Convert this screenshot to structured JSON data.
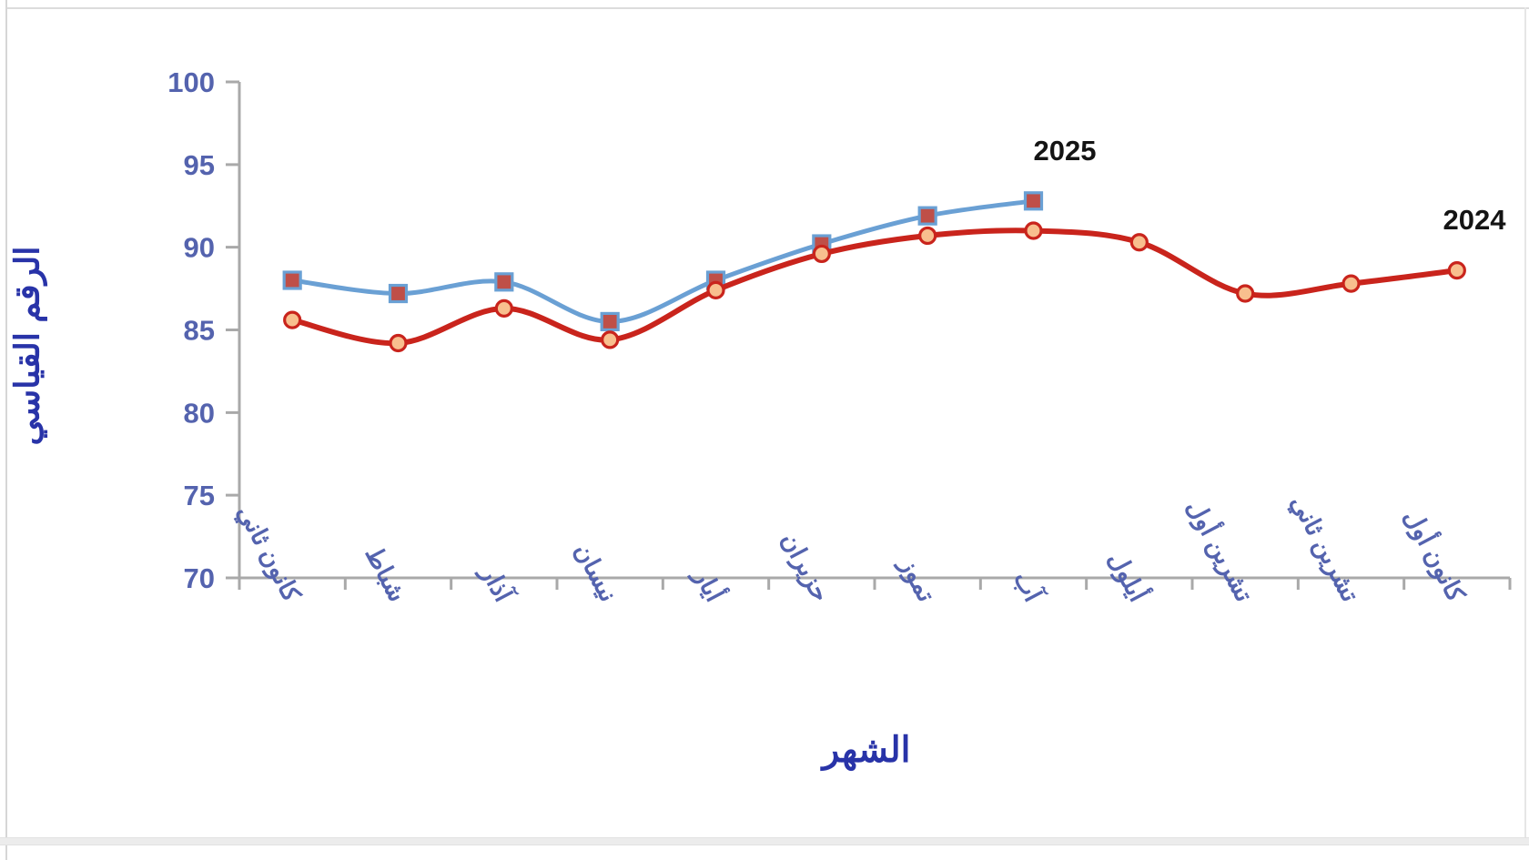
{
  "chart_data": {
    "type": "line",
    "title": "",
    "xlabel": "الشهر",
    "ylabel": "الرقم القياسي",
    "ylim": [
      70,
      100
    ],
    "ytick_step": 5,
    "grid": false,
    "legend_position": "end-of-line-labels",
    "categories": [
      "كانون ثاني",
      "شباط",
      "آذار",
      "نيسان",
      "أيار",
      "حزيران",
      "تموز",
      "آب",
      "أيلول",
      "تشرين أول",
      "تشرين ثاني",
      "كانون أول"
    ],
    "series": [
      {
        "name": "2025",
        "color": "#6aa0d4",
        "marker": "square",
        "marker_fill": "#bf4f48",
        "line_width": 5,
        "values": [
          88.0,
          87.2,
          87.9,
          85.5,
          88.0,
          90.2,
          91.9,
          92.8
        ]
      },
      {
        "name": "2024",
        "color": "#c9241c",
        "marker": "circle",
        "marker_fill": "#f8bf8e",
        "line_width": 6,
        "values": [
          85.6,
          84.2,
          86.3,
          84.4,
          87.4,
          89.6,
          90.7,
          91.0,
          90.3,
          87.2,
          87.8,
          88.6
        ]
      }
    ],
    "colors": {
      "axis_line": "#a9a9a9",
      "tick_label": "#5463ae",
      "axis_title": "#2833a8",
      "series_label": "#141414"
    }
  }
}
